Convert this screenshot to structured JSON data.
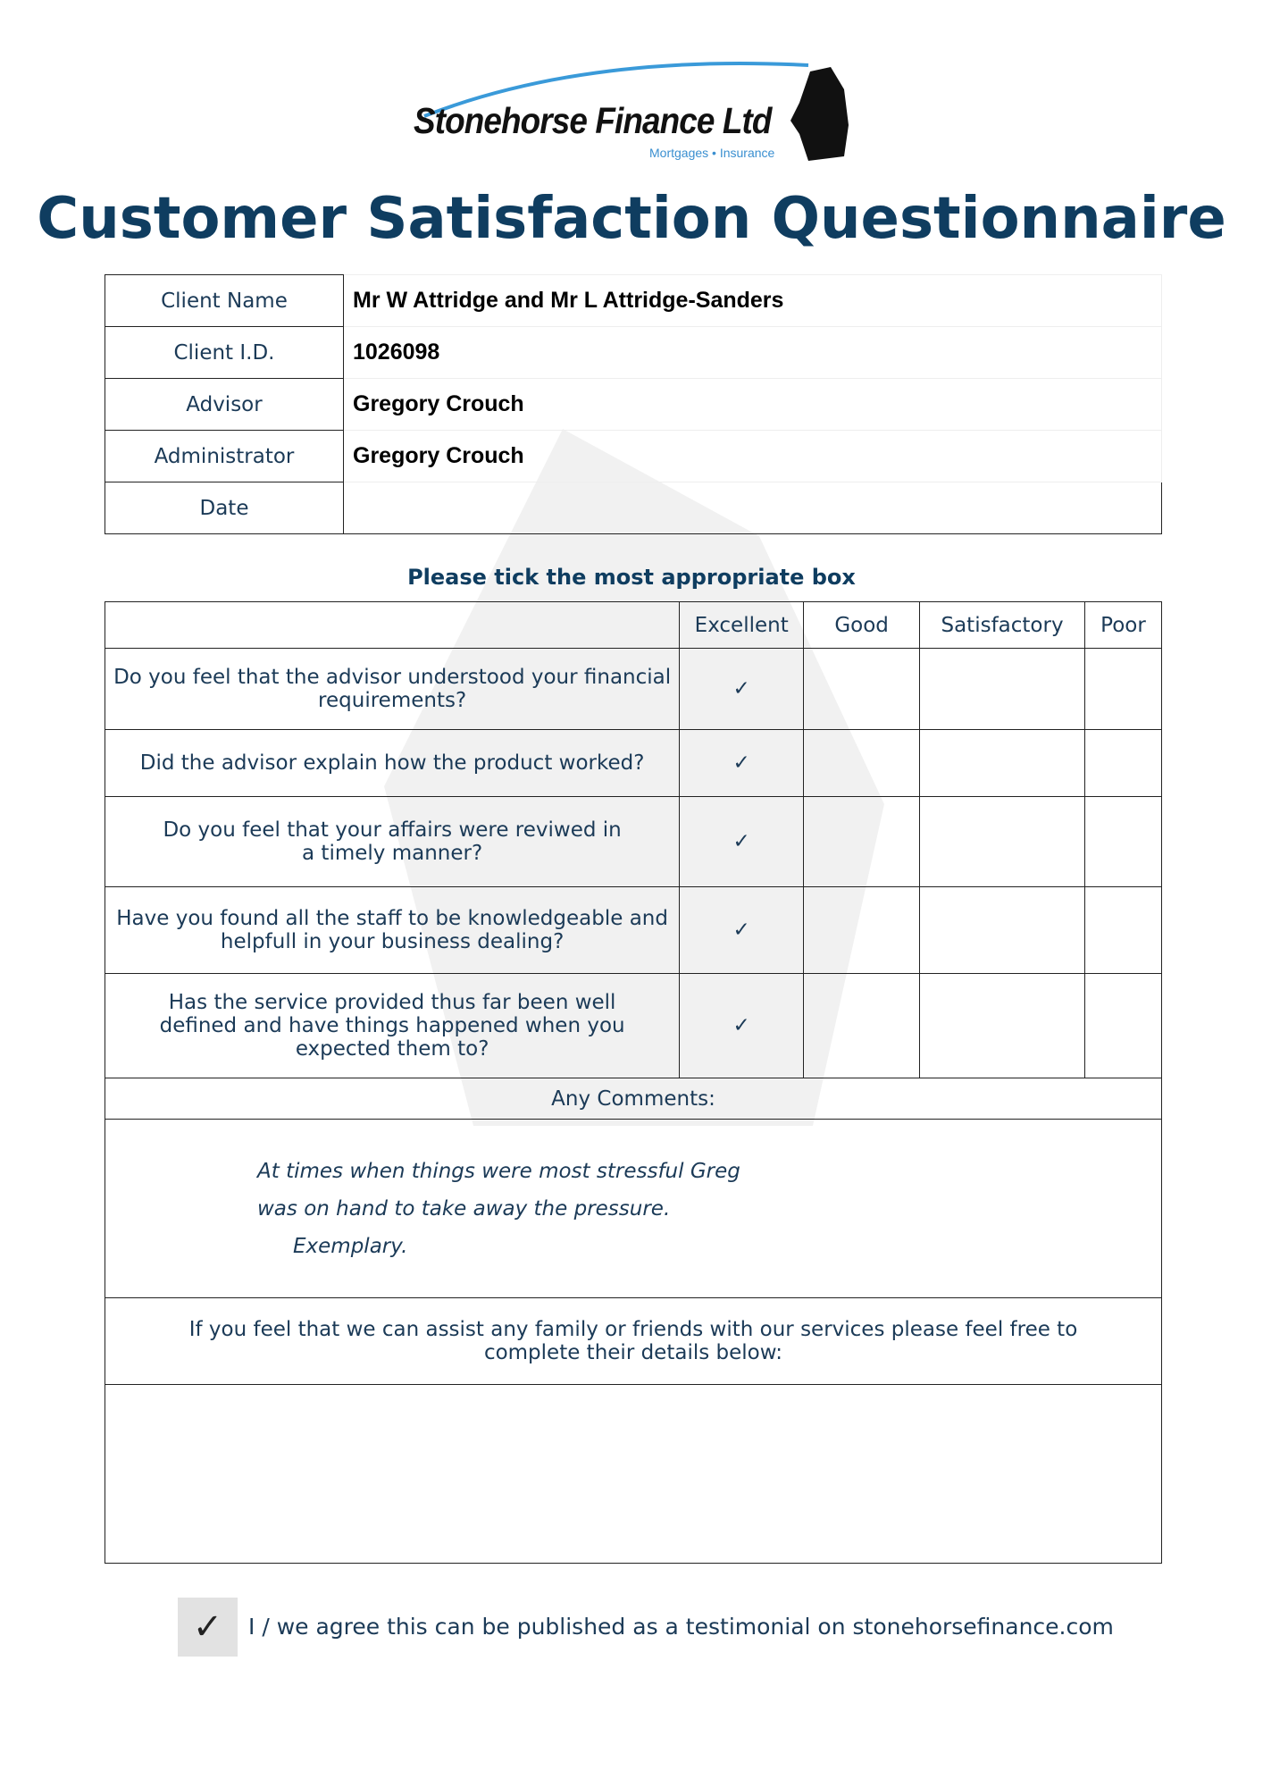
{
  "logo": {
    "name": "Stonehorse Finance Ltd",
    "tagline": "Mortgages • Insurance",
    "swoosh_color": "#3a9ad9"
  },
  "title": "Customer Satisfaction Questionnaire",
  "client_info": [
    {
      "label": "Client Name",
      "value": "Mr W Attridge and Mr L Attridge-Sanders"
    },
    {
      "label": "Client I.D.",
      "value": "1026098"
    },
    {
      "label": "Advisor",
      "value": "Gregory Crouch"
    },
    {
      "label": "Administrator",
      "value": "Gregory Crouch"
    },
    {
      "label": "Date",
      "value": ""
    }
  ],
  "instruction": "Please tick the most appropriate box",
  "ratings": {
    "columns": [
      "Excellent",
      "Good",
      "Satisfactory",
      "Poor"
    ],
    "tick_mark": "✓",
    "questions": [
      {
        "text": "Do you feel that the advisor understood your financial requirements?",
        "selected": "Excellent"
      },
      {
        "text": "Did the advisor explain how the product worked?",
        "selected": "Excellent"
      },
      {
        "text": "Do you feel that your affairs were reviwed in a timely manner?",
        "selected": "Excellent"
      },
      {
        "text": "Have you found all the staff to be knowledgeable and helpfull in your business dealing?",
        "selected": "Excellent"
      },
      {
        "text": "Has the service provided thus far been well defined and have things happened when you expected them to?",
        "selected": "Excellent"
      }
    ]
  },
  "comments_label": "Any Comments:",
  "comments": [
    "At times when things were most stressful Greg",
    "was on hand to take away the pressure.",
    "Exemplary."
  ],
  "referral_text": "If you feel that we can assist any family or friends with our services please feel free to complete their details below:",
  "referral_details": "",
  "testimonial": {
    "checked": true,
    "label": "I / we agree this can be published as a testimonial on stonehorsefinance.com"
  },
  "colors": {
    "heading": "#0f3d60",
    "text": "#1b3a57"
  }
}
